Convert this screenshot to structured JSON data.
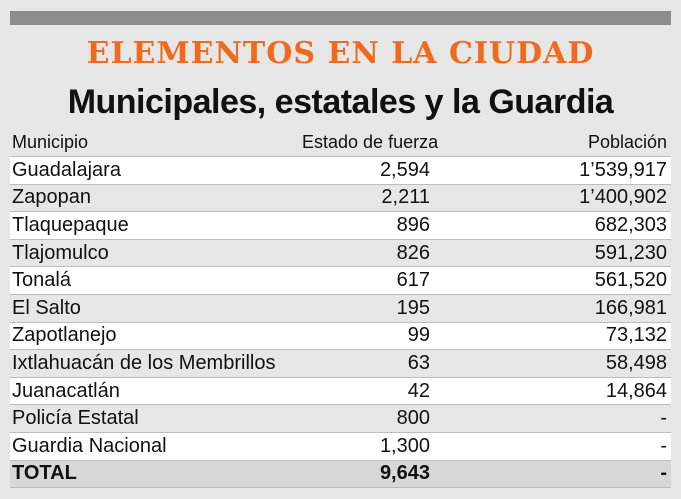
{
  "titles": {
    "kicker": "ELEMENTOS EN LA CIUDAD",
    "headline": "Municipales, estatales y la Guardia"
  },
  "colors": {
    "kicker": "#f06a1e",
    "top_bar": "#8c8c8c",
    "background": "#e6e6e6",
    "row_highlight": "#ffffff",
    "total_row": "#d7d7d7"
  },
  "table": {
    "headers": [
      "Municipio",
      "Estado de fuerza",
      "Población"
    ],
    "rows": [
      [
        "Guadalajara",
        "2,594",
        "1’539,917"
      ],
      [
        "Zapopan",
        "2,211",
        "1’400,902"
      ],
      [
        "Tlaquepaque",
        "896",
        "682,303"
      ],
      [
        "Tlajomulco",
        "826",
        "591,230"
      ],
      [
        "Tonalá",
        "617",
        "561,520"
      ],
      [
        "El Salto",
        "195",
        "166,981"
      ],
      [
        "Zapotlanejo",
        "99",
        "73,132"
      ],
      [
        "Ixtlahuacán de los Membrillos",
        "63",
        "58,498"
      ],
      [
        "Juanacatlán",
        "42",
        "14,864"
      ],
      [
        "Policía Estatal",
        "800",
        "-"
      ],
      [
        "Guardia Nacional",
        "1,300",
        "-"
      ]
    ],
    "total": [
      "TOTAL",
      "9,643",
      "-"
    ]
  }
}
